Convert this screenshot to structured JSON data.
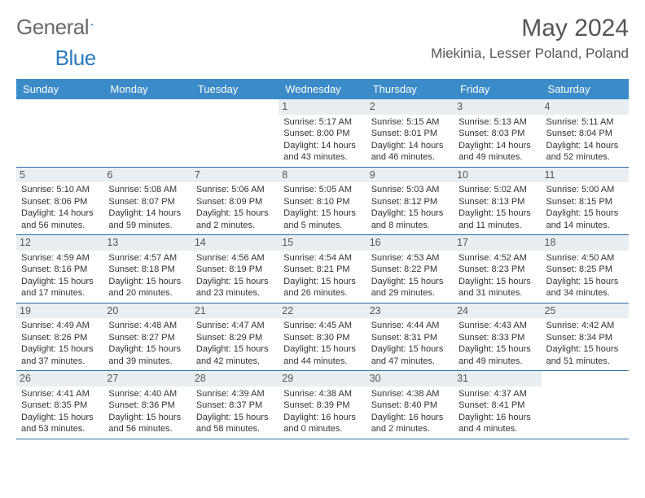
{
  "logo": {
    "text1": "General",
    "text2": "Blue"
  },
  "title": "May 2024",
  "location": "Miekinia, Lesser Poland, Poland",
  "colors": {
    "header_bg": "#3b8bc9",
    "header_text": "#ffffff",
    "daynum_bg": "#e9eef2",
    "row_border": "#2f6fa5",
    "logo_gray": "#6a6a6a",
    "logo_blue": "#2b7bbf"
  },
  "typography": {
    "title_fontsize": 30,
    "location_fontsize": 17,
    "dayhead_fontsize": 13,
    "cell_fontsize": 11
  },
  "day_headers": [
    "Sunday",
    "Monday",
    "Tuesday",
    "Wednesday",
    "Thursday",
    "Friday",
    "Saturday"
  ],
  "weeks": [
    [
      {
        "empty": true
      },
      {
        "empty": true
      },
      {
        "empty": true
      },
      {
        "day": "1",
        "sunrise": "Sunrise: 5:17 AM",
        "sunset": "Sunset: 8:00 PM",
        "daylight": "Daylight: 14 hours and 43 minutes."
      },
      {
        "day": "2",
        "sunrise": "Sunrise: 5:15 AM",
        "sunset": "Sunset: 8:01 PM",
        "daylight": "Daylight: 14 hours and 46 minutes."
      },
      {
        "day": "3",
        "sunrise": "Sunrise: 5:13 AM",
        "sunset": "Sunset: 8:03 PM",
        "daylight": "Daylight: 14 hours and 49 minutes."
      },
      {
        "day": "4",
        "sunrise": "Sunrise: 5:11 AM",
        "sunset": "Sunset: 8:04 PM",
        "daylight": "Daylight: 14 hours and 52 minutes."
      }
    ],
    [
      {
        "day": "5",
        "sunrise": "Sunrise: 5:10 AM",
        "sunset": "Sunset: 8:06 PM",
        "daylight": "Daylight: 14 hours and 56 minutes."
      },
      {
        "day": "6",
        "sunrise": "Sunrise: 5:08 AM",
        "sunset": "Sunset: 8:07 PM",
        "daylight": "Daylight: 14 hours and 59 minutes."
      },
      {
        "day": "7",
        "sunrise": "Sunrise: 5:06 AM",
        "sunset": "Sunset: 8:09 PM",
        "daylight": "Daylight: 15 hours and 2 minutes."
      },
      {
        "day": "8",
        "sunrise": "Sunrise: 5:05 AM",
        "sunset": "Sunset: 8:10 PM",
        "daylight": "Daylight: 15 hours and 5 minutes."
      },
      {
        "day": "9",
        "sunrise": "Sunrise: 5:03 AM",
        "sunset": "Sunset: 8:12 PM",
        "daylight": "Daylight: 15 hours and 8 minutes."
      },
      {
        "day": "10",
        "sunrise": "Sunrise: 5:02 AM",
        "sunset": "Sunset: 8:13 PM",
        "daylight": "Daylight: 15 hours and 11 minutes."
      },
      {
        "day": "11",
        "sunrise": "Sunrise: 5:00 AM",
        "sunset": "Sunset: 8:15 PM",
        "daylight": "Daylight: 15 hours and 14 minutes."
      }
    ],
    [
      {
        "day": "12",
        "sunrise": "Sunrise: 4:59 AM",
        "sunset": "Sunset: 8:16 PM",
        "daylight": "Daylight: 15 hours and 17 minutes."
      },
      {
        "day": "13",
        "sunrise": "Sunrise: 4:57 AM",
        "sunset": "Sunset: 8:18 PM",
        "daylight": "Daylight: 15 hours and 20 minutes."
      },
      {
        "day": "14",
        "sunrise": "Sunrise: 4:56 AM",
        "sunset": "Sunset: 8:19 PM",
        "daylight": "Daylight: 15 hours and 23 minutes."
      },
      {
        "day": "15",
        "sunrise": "Sunrise: 4:54 AM",
        "sunset": "Sunset: 8:21 PM",
        "daylight": "Daylight: 15 hours and 26 minutes."
      },
      {
        "day": "16",
        "sunrise": "Sunrise: 4:53 AM",
        "sunset": "Sunset: 8:22 PM",
        "daylight": "Daylight: 15 hours and 29 minutes."
      },
      {
        "day": "17",
        "sunrise": "Sunrise: 4:52 AM",
        "sunset": "Sunset: 8:23 PM",
        "daylight": "Daylight: 15 hours and 31 minutes."
      },
      {
        "day": "18",
        "sunrise": "Sunrise: 4:50 AM",
        "sunset": "Sunset: 8:25 PM",
        "daylight": "Daylight: 15 hours and 34 minutes."
      }
    ],
    [
      {
        "day": "19",
        "sunrise": "Sunrise: 4:49 AM",
        "sunset": "Sunset: 8:26 PM",
        "daylight": "Daylight: 15 hours and 37 minutes."
      },
      {
        "day": "20",
        "sunrise": "Sunrise: 4:48 AM",
        "sunset": "Sunset: 8:27 PM",
        "daylight": "Daylight: 15 hours and 39 minutes."
      },
      {
        "day": "21",
        "sunrise": "Sunrise: 4:47 AM",
        "sunset": "Sunset: 8:29 PM",
        "daylight": "Daylight: 15 hours and 42 minutes."
      },
      {
        "day": "22",
        "sunrise": "Sunrise: 4:45 AM",
        "sunset": "Sunset: 8:30 PM",
        "daylight": "Daylight: 15 hours and 44 minutes."
      },
      {
        "day": "23",
        "sunrise": "Sunrise: 4:44 AM",
        "sunset": "Sunset: 8:31 PM",
        "daylight": "Daylight: 15 hours and 47 minutes."
      },
      {
        "day": "24",
        "sunrise": "Sunrise: 4:43 AM",
        "sunset": "Sunset: 8:33 PM",
        "daylight": "Daylight: 15 hours and 49 minutes."
      },
      {
        "day": "25",
        "sunrise": "Sunrise: 4:42 AM",
        "sunset": "Sunset: 8:34 PM",
        "daylight": "Daylight: 15 hours and 51 minutes."
      }
    ],
    [
      {
        "day": "26",
        "sunrise": "Sunrise: 4:41 AM",
        "sunset": "Sunset: 8:35 PM",
        "daylight": "Daylight: 15 hours and 53 minutes."
      },
      {
        "day": "27",
        "sunrise": "Sunrise: 4:40 AM",
        "sunset": "Sunset: 8:36 PM",
        "daylight": "Daylight: 15 hours and 56 minutes."
      },
      {
        "day": "28",
        "sunrise": "Sunrise: 4:39 AM",
        "sunset": "Sunset: 8:37 PM",
        "daylight": "Daylight: 15 hours and 58 minutes."
      },
      {
        "day": "29",
        "sunrise": "Sunrise: 4:38 AM",
        "sunset": "Sunset: 8:39 PM",
        "daylight": "Daylight: 16 hours and 0 minutes."
      },
      {
        "day": "30",
        "sunrise": "Sunrise: 4:38 AM",
        "sunset": "Sunset: 8:40 PM",
        "daylight": "Daylight: 16 hours and 2 minutes."
      },
      {
        "day": "31",
        "sunrise": "Sunrise: 4:37 AM",
        "sunset": "Sunset: 8:41 PM",
        "daylight": "Daylight: 16 hours and 4 minutes."
      },
      {
        "empty": true
      }
    ]
  ]
}
